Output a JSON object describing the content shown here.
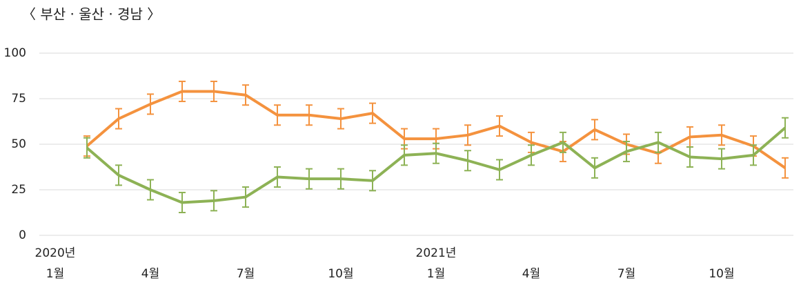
{
  "chart_data": {
    "type": "line",
    "title": "〈 부산 · 울산 · 경남 〉",
    "categories": [
      "1월",
      null,
      null,
      "4월",
      null,
      null,
      "7월",
      null,
      null,
      "10월",
      null,
      null,
      "1월",
      null,
      null,
      "4월",
      null,
      null,
      "7월",
      null,
      null,
      "10월",
      null,
      null
    ],
    "years": [
      "2020년",
      "2021년"
    ],
    "series": [
      {
        "color": "#f4923e",
        "error": 5.5,
        "values": [
          null,
          49,
          64,
          72,
          79,
          79,
          77,
          66,
          66,
          64,
          67,
          53,
          53,
          55,
          60,
          51,
          46,
          58,
          50,
          45,
          54,
          55,
          49,
          37
        ]
      },
      {
        "color": "#8db255",
        "error": 5.5,
        "values": [
          null,
          48,
          33,
          25,
          18,
          19,
          21,
          32,
          31,
          31,
          30,
          44,
          45,
          41,
          36,
          44,
          51,
          37,
          46,
          51,
          43,
          42,
          44,
          59
        ]
      }
    ],
    "ylim": [
      0,
      100
    ],
    "yticks": [
      0,
      25,
      50,
      75,
      100
    ],
    "grid": true
  }
}
